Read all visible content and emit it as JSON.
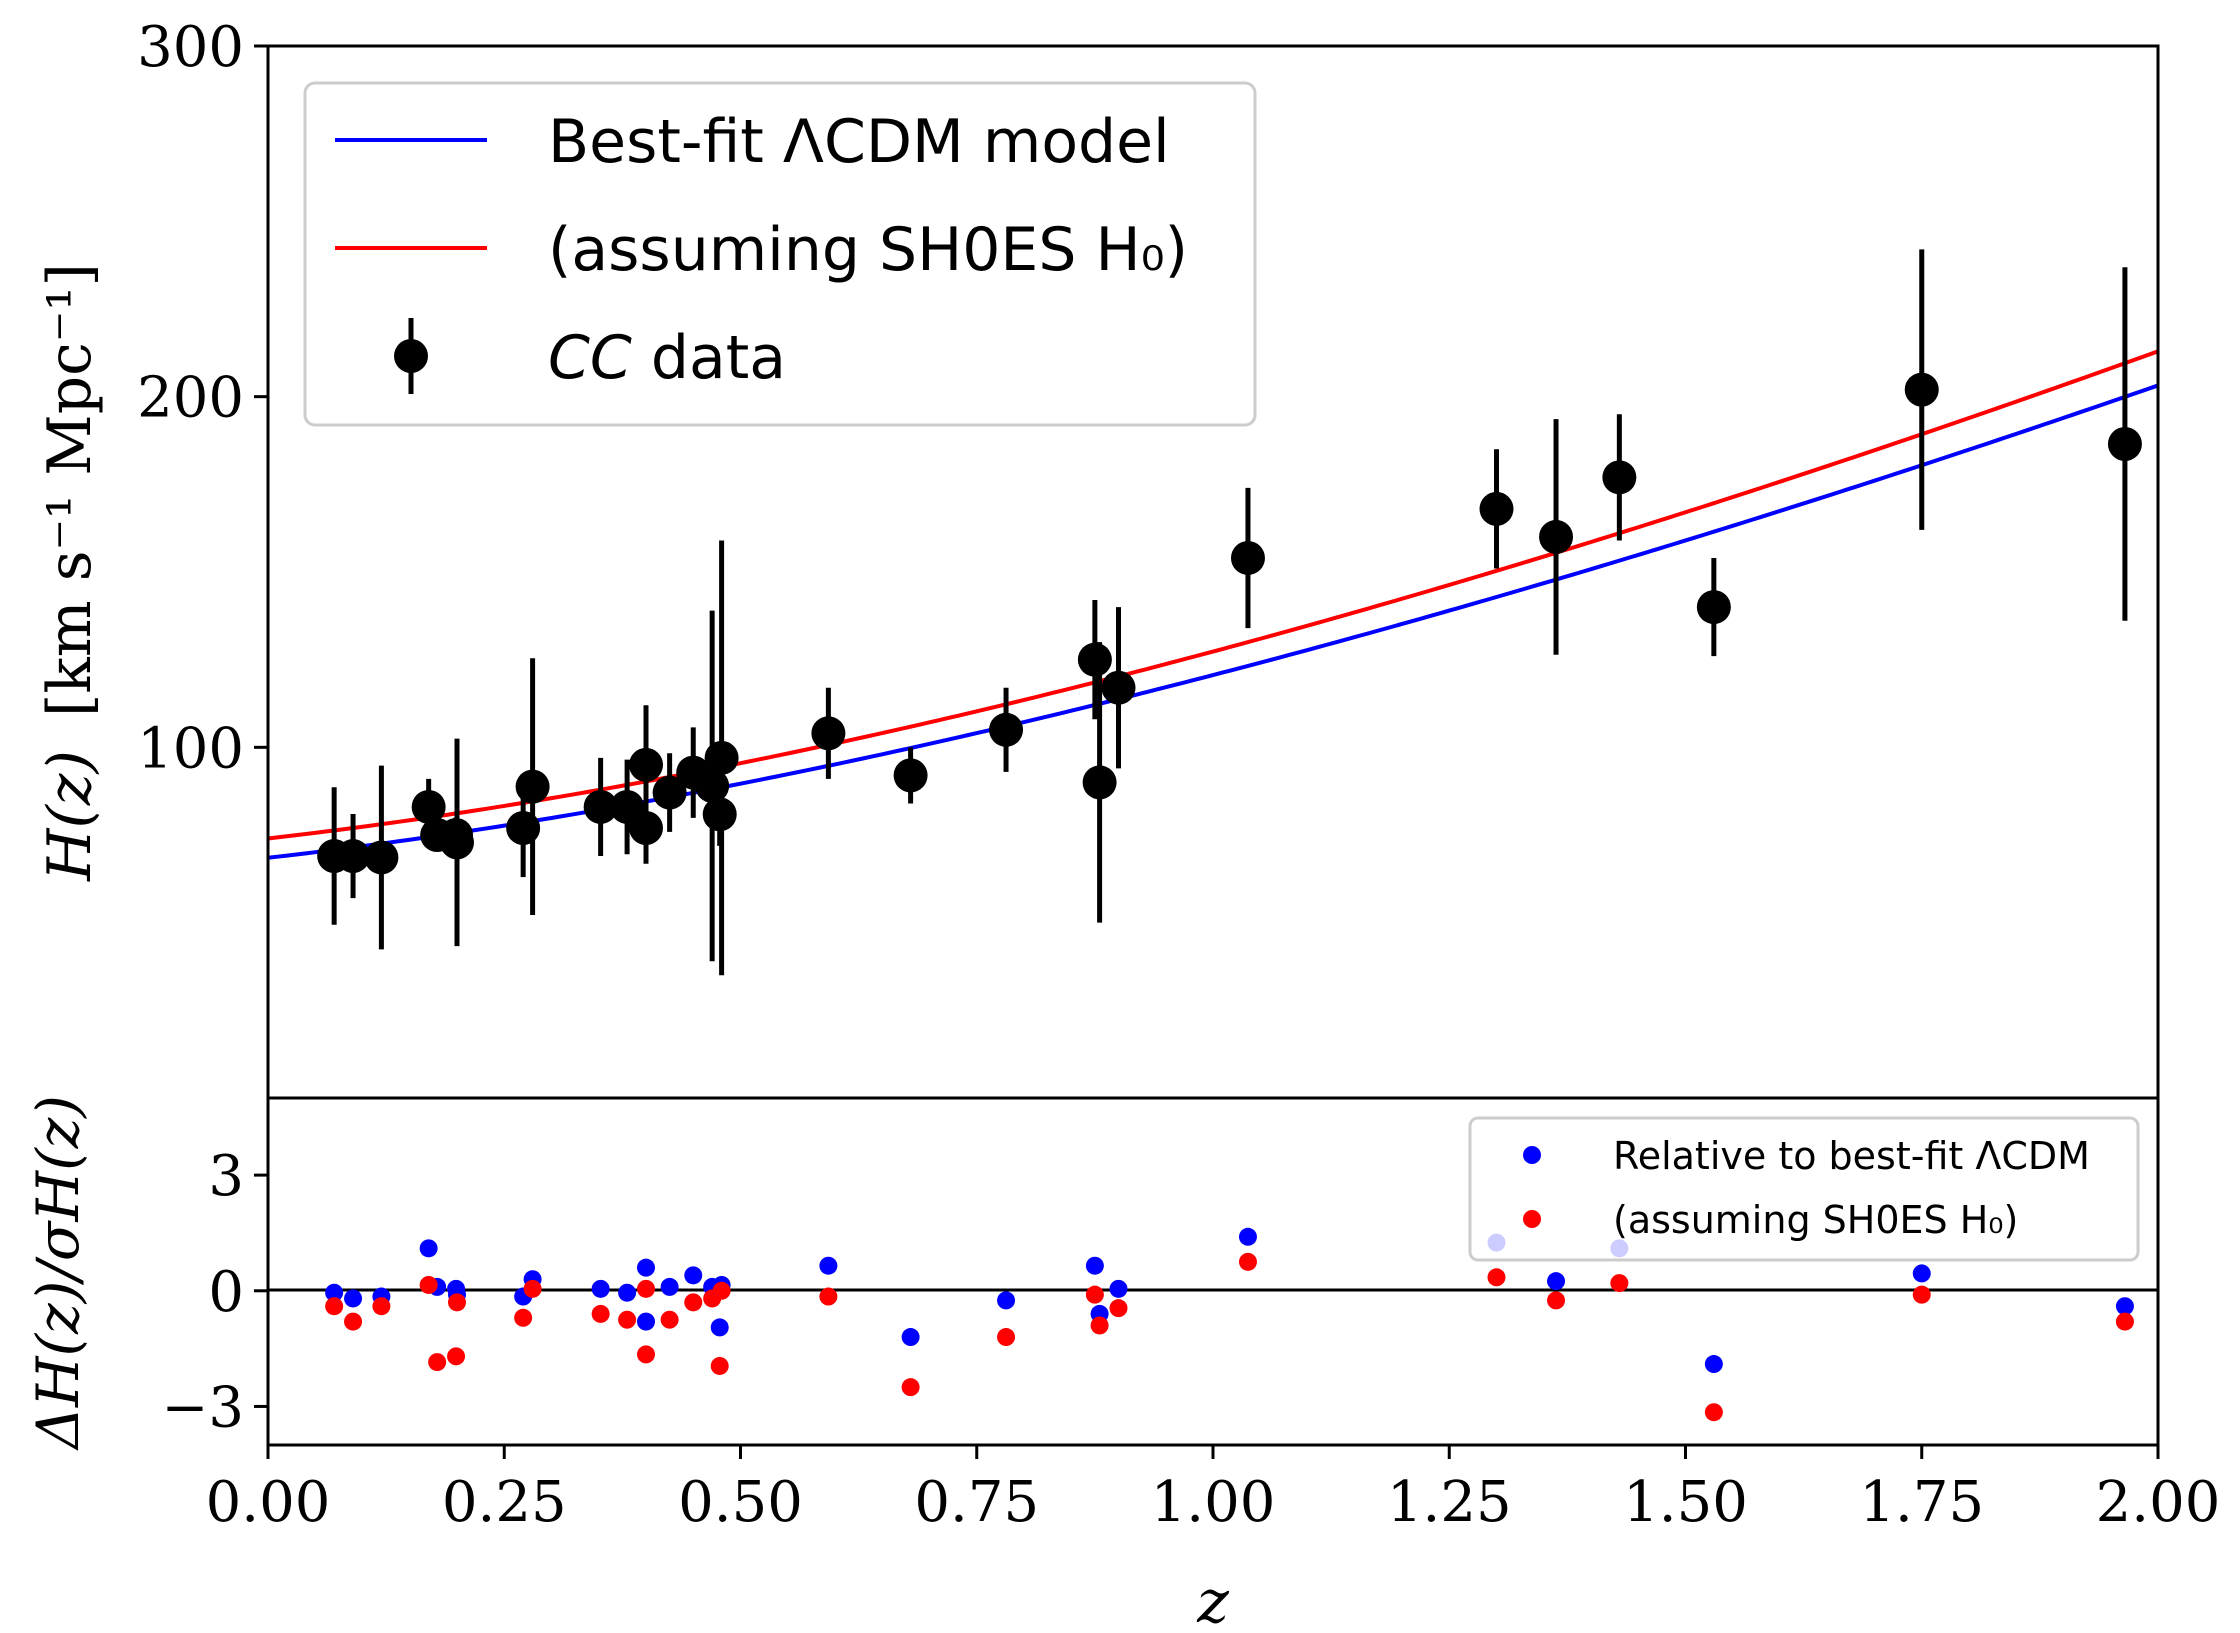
{
  "chart_data": [
    {
      "panel": "main",
      "type": "scatter",
      "xlabel": "",
      "ylabel": "H(z) [km s⁻¹ Mpc⁻¹]",
      "ylabel_parts": {
        "var": "H(z)",
        "units": "[km s⁻¹ Mpc⁻¹]"
      },
      "xlim": [
        0,
        2
      ],
      "ylim": [
        0,
        300
      ],
      "yticks": [
        100,
        200,
        300
      ],
      "ytick_labels": [
        "100",
        "200",
        "300"
      ],
      "legend": {
        "placement": "top-left",
        "entries": [
          {
            "label": "Best-fit ΛCDM model",
            "color": "#0000ff",
            "marker": "line"
          },
          {
            "label": "(assuming SH0ES H₀)",
            "color": "#ff0000",
            "marker": "line"
          },
          {
            "label": "CC data",
            "label_italic_part": "CC",
            "label_rest": " data",
            "color": "#000000",
            "marker": "errorbar"
          }
        ]
      },
      "series": [
        {
          "name": "Best-fit ΛCDM model",
          "color": "#0000ff",
          "kind": "model",
          "H0": 68.5,
          "Om": 0.3,
          "z_range": [
            0,
            2
          ]
        },
        {
          "name": "(assuming SH0ES H₀)",
          "color": "#ff0000",
          "kind": "model",
          "H0": 74.0,
          "Om": 0.28,
          "z_range": [
            0,
            2
          ]
        },
        {
          "name": "CC data",
          "color": "#000000",
          "kind": "errorbar",
          "points": [
            {
              "z": 0.07,
              "H": 69,
              "err": 19.6
            },
            {
              "z": 0.09,
              "H": 69,
              "err": 12
            },
            {
              "z": 0.12,
              "H": 68.6,
              "err": 26.2
            },
            {
              "z": 0.17,
              "H": 83,
              "err": 8
            },
            {
              "z": 0.179,
              "H": 75,
              "err": 4
            },
            {
              "z": 0.199,
              "H": 75,
              "err": 5
            },
            {
              "z": 0.2,
              "H": 72.9,
              "err": 29.6
            },
            {
              "z": 0.27,
              "H": 77,
              "err": 14
            },
            {
              "z": 0.28,
              "H": 88.8,
              "err": 36.6
            },
            {
              "z": 0.352,
              "H": 83,
              "err": 14
            },
            {
              "z": 0.38,
              "H": 83,
              "err": 13.5
            },
            {
              "z": 0.4,
              "H": 95,
              "err": 17
            },
            {
              "z": 0.4,
              "H": 77,
              "err": 10.2
            },
            {
              "z": 0.425,
              "H": 87.1,
              "err": 11.2
            },
            {
              "z": 0.45,
              "H": 92.8,
              "err": 12.9
            },
            {
              "z": 0.47,
              "H": 89,
              "err": 50
            },
            {
              "z": 0.478,
              "H": 80.9,
              "err": 9
            },
            {
              "z": 0.48,
              "H": 97,
              "err": 62
            },
            {
              "z": 0.593,
              "H": 104,
              "err": 13
            },
            {
              "z": 0.68,
              "H": 92,
              "err": 8
            },
            {
              "z": 0.781,
              "H": 105,
              "err": 12
            },
            {
              "z": 0.875,
              "H": 125,
              "err": 17
            },
            {
              "z": 0.88,
              "H": 90,
              "err": 40
            },
            {
              "z": 0.9,
              "H": 117,
              "err": 23
            },
            {
              "z": 1.037,
              "H": 154,
              "err": 20
            },
            {
              "z": 1.3,
              "H": 168,
              "err": 17
            },
            {
              "z": 1.363,
              "H": 160,
              "err": 33.6
            },
            {
              "z": 1.43,
              "H": 177,
              "err": 18
            },
            {
              "z": 1.53,
              "H": 140,
              "err": 14
            },
            {
              "z": 1.75,
              "H": 202,
              "err": 40
            },
            {
              "z": 1.965,
              "H": 186.5,
              "err": 50.4
            }
          ]
        }
      ]
    },
    {
      "panel": "residuals",
      "type": "scatter",
      "xlabel": "z",
      "ylabel": "ΔH(z)/σH(z)",
      "xlim": [
        0,
        2
      ],
      "ylim": [
        -4,
        5
      ],
      "xticks": [
        0.0,
        0.25,
        0.5,
        0.75,
        1.0,
        1.25,
        1.5,
        1.75,
        2.0
      ],
      "xtick_labels": [
        "0.00",
        "0.25",
        "0.50",
        "0.75",
        "1.00",
        "1.25",
        "1.50",
        "1.75",
        "2.00"
      ],
      "yticks": [
        -3,
        0,
        3
      ],
      "ytick_labels": [
        "−3",
        "0",
        "3"
      ],
      "zero_line": true,
      "legend": {
        "placement": "top-right",
        "entries": [
          {
            "label": "Relative to best-fit ΛCDM",
            "color": "#0000ff",
            "marker": "dot"
          },
          {
            "label": "(assuming SH0ES H₀)",
            "color": "#ff0000",
            "marker": "dot"
          }
        ]
      },
      "series": [
        {
          "name": "Relative to best-fit ΛCDM",
          "color": "#0000ff",
          "x": [
            0.07,
            0.09,
            0.12,
            0.17,
            0.179,
            0.199,
            0.2,
            0.27,
            0.28,
            0.352,
            0.38,
            0.4,
            0.4,
            0.425,
            0.45,
            0.47,
            0.478,
            0.48,
            0.593,
            0.68,
            0.781,
            0.875,
            0.88,
            0.9,
            1.037,
            1.3,
            1.363,
            1.43,
            1.53,
            1.75,
            1.965
          ],
          "y": [
            -0.05,
            -0.2,
            -0.15,
            1.1,
            0.1,
            0.05,
            -0.1,
            -0.15,
            0.3,
            0.05,
            -0.05,
            0.6,
            -0.8,
            0.1,
            0.4,
            0.1,
            -0.95,
            0.15,
            0.65,
            -1.2,
            -0.25,
            0.65,
            -0.6,
            0.05,
            1.4,
            1.25,
            0.25,
            1.1,
            -1.9,
            0.45,
            -0.4
          ]
        },
        {
          "name": "(assuming SH0ES H₀)",
          "color": "#ff0000",
          "x": [
            0.07,
            0.09,
            0.12,
            0.17,
            0.179,
            0.199,
            0.2,
            0.27,
            0.28,
            0.352,
            0.38,
            0.4,
            0.4,
            0.425,
            0.45,
            0.47,
            0.478,
            0.48,
            0.593,
            0.68,
            0.781,
            0.875,
            0.88,
            0.9,
            1.037,
            1.3,
            1.363,
            1.43,
            1.53,
            1.75,
            1.965
          ],
          "y": [
            -0.4,
            -0.8,
            -0.4,
            0.15,
            -1.85,
            -1.7,
            -0.3,
            -0.7,
            0.05,
            -0.6,
            -0.75,
            0.05,
            -1.65,
            -0.75,
            -0.3,
            -0.2,
            -1.95,
            0.0,
            -0.15,
            -2.5,
            -1.2,
            -0.1,
            -0.9,
            -0.45,
            0.75,
            0.35,
            -0.25,
            0.2,
            -3.15,
            -0.1,
            -0.8
          ]
        }
      ]
    }
  ]
}
